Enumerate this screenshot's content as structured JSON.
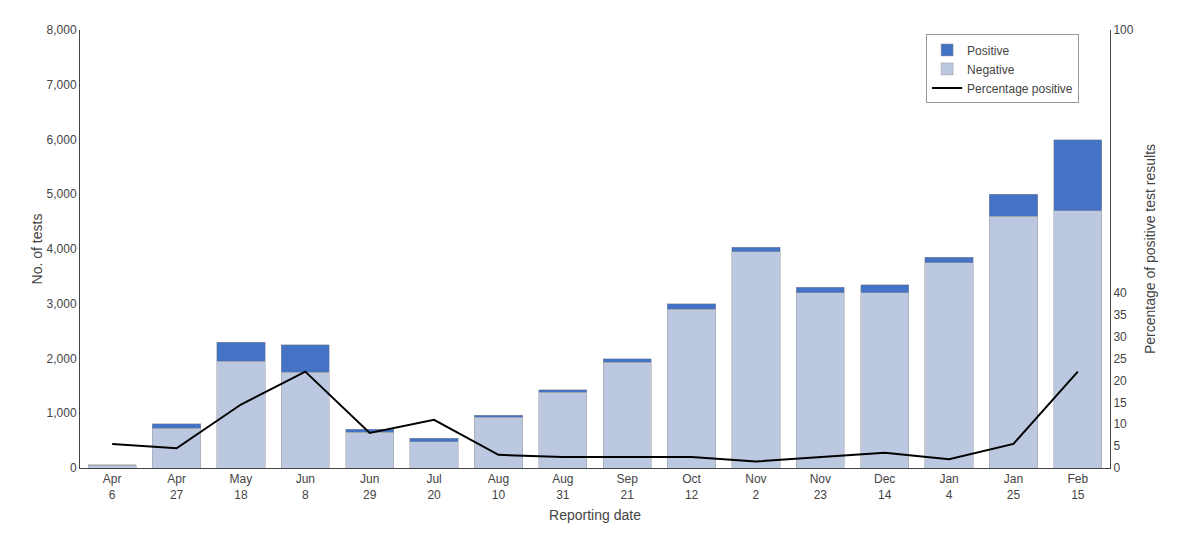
{
  "chart_data": {
    "type": "bar",
    "stacked": true,
    "categories": [
      "Apr\n6",
      "Apr\n27",
      "May\n18",
      "Jun\n8",
      "Jun\n29",
      "Jul\n20",
      "Aug\n10",
      "Aug\n31",
      "Sep\n21",
      "Oct\n12",
      "Nov\n2",
      "Nov\n23",
      "Dec\n14",
      "Jan\n4",
      "Jan\n25",
      "Feb\n15"
    ],
    "series": [
      {
        "name": "Negative",
        "color": "#BCC8E0",
        "values": [
          50,
          730,
          1950,
          1750,
          650,
          480,
          930,
          1380,
          1930,
          2900,
          3950,
          3200,
          3200,
          3750,
          4600,
          4700
        ]
      },
      {
        "name": "Positive",
        "color": "#4472C4",
        "values": [
          10,
          80,
          350,
          500,
          60,
          60,
          30,
          50,
          70,
          100,
          80,
          100,
          150,
          100,
          400,
          1300
        ]
      },
      {
        "name": "Percentage positive",
        "type": "line",
        "axis": "y2",
        "color": "#000000",
        "values": [
          5.5,
          4.5,
          14.5,
          22.0,
          8.0,
          11.0,
          3.0,
          2.5,
          2.5,
          2.5,
          1.5,
          2.5,
          3.5,
          2.0,
          5.5,
          22.0
        ]
      }
    ],
    "xlabel": "Reporting date",
    "ylabel": "No. of tests",
    "y2label": "Percentage of positive test results",
    "ylim": [
      0,
      8000
    ],
    "yticks": [
      0,
      {
        "value": 1000,
        "label": "1,000"
      },
      {
        "value": 2000,
        "label": "2,000"
      },
      {
        "value": 3000,
        "label": "3,000"
      },
      {
        "value": 4000,
        "label": "4,000"
      },
      {
        "value": 5000,
        "label": "5,000"
      },
      {
        "value": 6000,
        "label": "6,000"
      },
      {
        "value": 7000,
        "label": "7,000"
      },
      {
        "value": 8000,
        "label": "8,000"
      }
    ],
    "y2lim": [
      0,
      100
    ],
    "y2ticks": [
      0,
      5,
      10,
      15,
      20,
      25,
      30,
      35,
      40,
      100
    ],
    "grid": false,
    "legend": "upper right"
  }
}
